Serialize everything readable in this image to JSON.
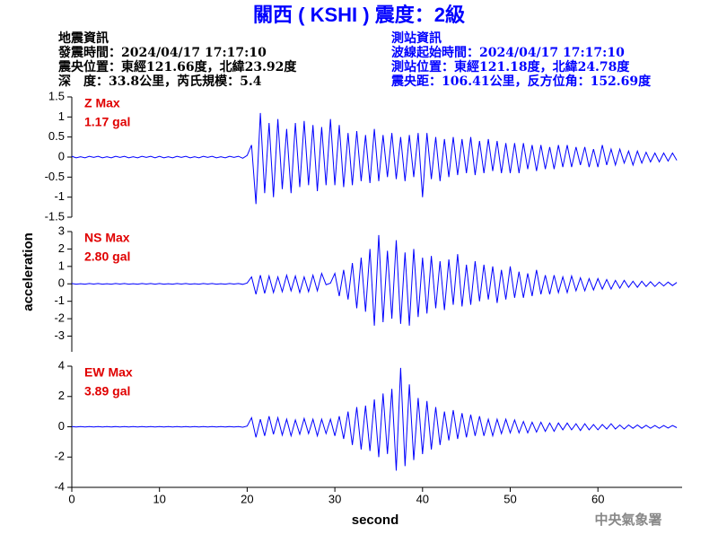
{
  "chart_data": {
    "type": "line",
    "title": "關西 ( KSHI ) 震度：2級",
    "info_left": [
      "地震資訊",
      "發震時間：2024/04/17 17:17:10",
      "震央位置：東經121.66度，北緯23.92度",
      "深　度：33.8公里，芮氏規模：5.4"
    ],
    "info_right": [
      "測站資訊",
      "波線起始時間：2024/04/17 17:17:10",
      "測站位置：東經121.18度，北緯24.78度",
      "震央距：106.41公里，反方位角：152.69度"
    ],
    "y_label": "acceleration",
    "x_label": "second",
    "footer": "中央氣象署",
    "xlim": [
      0,
      69.6
    ],
    "xticks": [
      0,
      10,
      20,
      30,
      40,
      50,
      60
    ],
    "x": [
      0,
      0.5,
      1,
      1.5,
      2,
      2.5,
      3,
      3.5,
      4,
      4.5,
      5,
      5.5,
      6,
      6.5,
      7,
      7.5,
      8,
      8.5,
      9,
      9.5,
      10,
      10.5,
      11,
      11.5,
      12,
      12.5,
      13,
      13.5,
      14,
      14.5,
      15,
      15.5,
      16,
      16.5,
      17,
      17.5,
      18,
      18.5,
      19,
      19.5,
      20,
      20.5,
      21,
      21.5,
      22,
      22.5,
      23,
      23.5,
      24,
      24.5,
      25,
      25.5,
      26,
      26.5,
      27,
      27.5,
      28,
      28.5,
      29,
      29.5,
      30,
      30.5,
      31,
      31.5,
      32,
      32.5,
      33,
      33.5,
      34,
      34.5,
      35,
      35.5,
      36,
      36.5,
      37,
      37.5,
      38,
      38.5,
      39,
      39.5,
      40,
      40.5,
      41,
      41.5,
      42,
      42.5,
      43,
      43.5,
      44,
      44.5,
      45,
      45.5,
      46,
      46.5,
      47,
      47.5,
      48,
      48.5,
      49,
      49.5,
      50,
      50.5,
      51,
      51.5,
      52,
      52.5,
      53,
      53.5,
      54,
      54.5,
      55,
      55.5,
      56,
      56.5,
      57,
      57.5,
      58,
      58.5,
      59,
      59.5,
      60,
      60.5,
      61,
      61.5,
      62,
      62.5,
      63,
      63.5,
      64,
      64.5,
      65,
      65.5,
      66,
      66.5,
      67,
      67.5,
      68,
      68.5,
      69
    ],
    "series": [
      {
        "name": "Z Max",
        "peak": "1.17 gal",
        "color": "#0000ff",
        "ylim": [
          -1.5,
          1.5
        ],
        "yticks": [
          -1.5,
          -1,
          -0.5,
          0,
          0.5,
          1,
          1.5
        ],
        "values": [
          0.02,
          -0.02,
          0.01,
          -0.02,
          0.02,
          -0.01,
          0.02,
          -0.02,
          0.01,
          -0.02,
          0.02,
          -0.01,
          0.02,
          -0.02,
          0.01,
          -0.02,
          0.02,
          -0.01,
          0.02,
          -0.02,
          0.02,
          -0.02,
          0.01,
          -0.02,
          0.02,
          -0.01,
          0.02,
          -0.02,
          0.01,
          -0.02,
          0.02,
          -0.01,
          0.02,
          -0.02,
          0.01,
          -0.02,
          0.02,
          -0.01,
          0.02,
          -0.03,
          0.04,
          0.3,
          -1.17,
          1.1,
          -0.9,
          0.85,
          -1.0,
          0.95,
          -0.8,
          0.7,
          -0.9,
          0.85,
          -0.75,
          0.9,
          -0.7,
          0.8,
          -0.85,
          0.75,
          -0.7,
          0.95,
          -0.7,
          0.8,
          -0.75,
          0.6,
          -0.7,
          0.65,
          -0.6,
          0.55,
          -0.65,
          0.7,
          -0.6,
          0.55,
          -0.5,
          0.6,
          -0.55,
          0.5,
          -0.6,
          0.55,
          -0.5,
          0.6,
          -1.0,
          0.6,
          -0.55,
          0.5,
          -0.6,
          0.45,
          -0.5,
          0.5,
          -0.45,
          0.45,
          -0.4,
          0.5,
          -0.45,
          0.4,
          -0.4,
          0.45,
          -0.35,
          0.4,
          -0.4,
          0.35,
          -0.4,
          0.35,
          -0.4,
          0.35,
          -0.3,
          0.3,
          -0.35,
          0.3,
          -0.3,
          0.25,
          -0.3,
          0.3,
          -0.25,
          0.3,
          -0.25,
          0.25,
          -0.2,
          0.25,
          -0.25,
          0.2,
          -0.25,
          0.3,
          -0.2,
          0.2,
          -0.2,
          0.2,
          -0.15,
          0.15,
          -0.2,
          0.15,
          -0.15,
          0.12,
          -0.12,
          0.1,
          -0.12,
          0.1,
          -0.1,
          0.1,
          -0.08
        ]
      },
      {
        "name": "NS Max",
        "peak": "2.80 gal",
        "color": "#0000ff",
        "ylim": [
          -3.9,
          3
        ],
        "yticks": [
          -3,
          -2,
          -1,
          0,
          1,
          2,
          3
        ],
        "values": [
          0.02,
          -0.02,
          0.01,
          -0.02,
          0.02,
          -0.01,
          0.02,
          -0.02,
          0.01,
          -0.02,
          0.02,
          -0.01,
          0.02,
          -0.02,
          0.01,
          -0.02,
          0.02,
          -0.01,
          0.02,
          -0.02,
          0.02,
          -0.02,
          0.01,
          -0.02,
          0.02,
          -0.01,
          0.02,
          -0.02,
          0.01,
          -0.02,
          0.02,
          -0.01,
          0.02,
          -0.02,
          0.01,
          -0.02,
          0.02,
          -0.01,
          0.02,
          -0.03,
          0.05,
          0.4,
          -0.6,
          0.5,
          -0.55,
          0.45,
          -0.5,
          0.4,
          -0.45,
          0.5,
          -0.4,
          0.45,
          -0.5,
          0.4,
          -0.45,
          0.5,
          -0.4,
          0.6,
          -0.05,
          0.04,
          0.6,
          -0.7,
          0.8,
          -0.9,
          1.2,
          -1.4,
          1.5,
          -1.6,
          2.0,
          -2.4,
          2.8,
          -2.2,
          1.9,
          -2.0,
          2.5,
          -2.3,
          1.8,
          -2.4,
          2.0,
          -1.9,
          1.5,
          -1.7,
          1.6,
          -1.4,
          1.3,
          -1.5,
          1.4,
          -1.2,
          1.7,
          -1.3,
          1.1,
          -1.2,
          1.3,
          -1.0,
          1.1,
          -0.9,
          1.0,
          -1.1,
          0.8,
          -0.9,
          1.0,
          -0.8,
          0.7,
          -0.8,
          0.6,
          -0.7,
          0.8,
          -0.6,
          0.5,
          -0.6,
          0.5,
          -0.5,
          0.4,
          -0.5,
          0.45,
          -0.4,
          0.35,
          -0.4,
          0.3,
          -0.35,
          0.3,
          -0.3,
          0.25,
          -0.3,
          0.2,
          -0.25,
          0.2,
          -0.2,
          0.15,
          -0.2,
          0.15,
          -0.15,
          0.12,
          -0.15,
          0.1,
          -0.12,
          0.1,
          -0.1,
          0.08
        ]
      },
      {
        "name": "EW Max",
        "peak": "3.89 gal",
        "color": "#0000ff",
        "ylim": [
          -4,
          4
        ],
        "yticks": [
          -4,
          -2,
          0,
          2,
          4
        ],
        "values": [
          0.02,
          -0.02,
          0.01,
          -0.02,
          0.02,
          -0.01,
          0.02,
          -0.02,
          0.01,
          -0.02,
          0.02,
          -0.01,
          0.02,
          -0.02,
          0.01,
          -0.02,
          0.02,
          -0.01,
          0.02,
          -0.02,
          0.02,
          -0.02,
          0.01,
          -0.02,
          0.02,
          -0.01,
          0.02,
          -0.02,
          0.01,
          -0.02,
          0.02,
          -0.01,
          0.02,
          -0.02,
          0.01,
          -0.02,
          0.02,
          -0.01,
          0.02,
          -0.03,
          0.05,
          0.6,
          -0.7,
          0.5,
          -0.6,
          0.7,
          -0.5,
          0.6,
          -0.55,
          0.5,
          -0.6,
          0.45,
          -0.5,
          0.55,
          -0.45,
          0.5,
          -0.6,
          0.5,
          -0.45,
          0.5,
          -0.6,
          0.7,
          -0.8,
          1.0,
          -1.2,
          1.3,
          -1.5,
          1.4,
          -1.6,
          1.8,
          -2.0,
          2.2,
          -1.8,
          2.5,
          -2.9,
          3.89,
          -2.6,
          2.8,
          -2.2,
          1.9,
          -1.8,
          1.7,
          -1.5,
          1.3,
          -1.2,
          1.0,
          -0.9,
          1.1,
          -0.8,
          0.9,
          -0.7,
          0.8,
          -0.6,
          0.7,
          -0.6,
          0.5,
          -0.6,
          0.5,
          -0.45,
          0.5,
          -0.4,
          0.45,
          -0.4,
          0.35,
          -0.4,
          0.3,
          -0.35,
          0.3,
          -0.3,
          0.25,
          -0.3,
          0.25,
          -0.2,
          0.25,
          -0.2,
          0.2,
          -0.25,
          0.2,
          -0.2,
          0.15,
          -0.2,
          0.15,
          -0.15,
          0.2,
          -0.15,
          0.12,
          -0.15,
          0.12,
          -0.1,
          0.12,
          -0.1,
          0.1,
          -0.1,
          0.08,
          -0.1,
          0.08,
          -0.08,
          0.08,
          -0.06
        ]
      }
    ]
  }
}
